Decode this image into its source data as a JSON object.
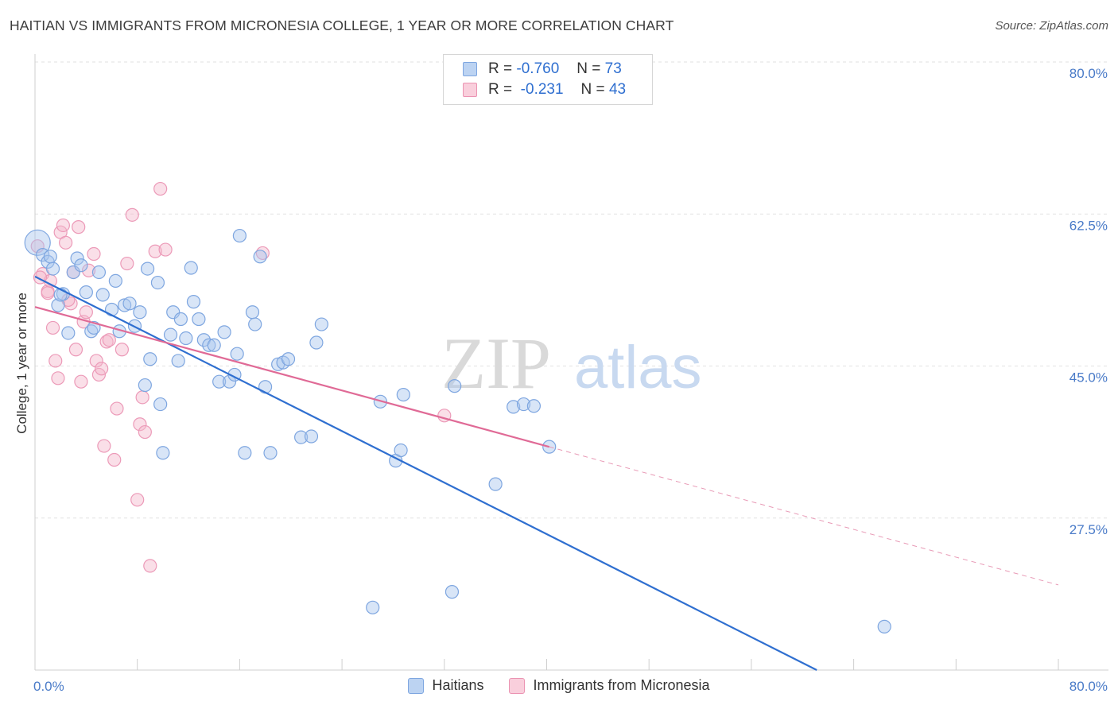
{
  "header": {
    "title": "HAITIAN VS IMMIGRANTS FROM MICRONESIA COLLEGE, 1 YEAR OR MORE CORRELATION CHART",
    "source": "Source: ZipAtlas.com"
  },
  "watermark": {
    "zip": "ZIP",
    "atlas": "atlas"
  },
  "colors": {
    "blue": "#2f6fd0",
    "blue_fill": "#a9c6ee",
    "pink": "#e06a96",
    "pink_fill": "#f5b8cc",
    "axis_text": "#4a7bc8"
  },
  "legend": {
    "rows": [
      {
        "r_label": "R =",
        "r_value": "-0.760",
        "n_label": "N =",
        "n_value": "73"
      },
      {
        "r_label": "R =",
        "r_value": "-0.231",
        "n_label": "N =",
        "n_value": "43"
      }
    ]
  },
  "chart_data": {
    "type": "scatter",
    "title": "HAITIAN VS IMMIGRANTS FROM MICRONESIA COLLEGE, 1 YEAR OR MORE CORRELATION CHART",
    "xlabel": "",
    "ylabel": "College, 1 year or more",
    "xlim": [
      0,
      80
    ],
    "ylim": [
      10,
      80
    ],
    "x_tick_labels": [
      "0.0%",
      "80.0%"
    ],
    "y_ticks": [
      27.5,
      45.0,
      62.5,
      80.0
    ],
    "y_tick_labels": [
      "27.5%",
      "45.0%",
      "62.5%",
      "80.0%"
    ],
    "grid": true,
    "legend_position": "top-center",
    "series": [
      {
        "name": "Haitians",
        "color": "#2f6fd0",
        "trend": {
          "x": [
            0,
            80
          ],
          "y": [
            55.3,
            -4.0
          ]
        },
        "points": [
          [
            0.2,
            59.2
          ],
          [
            0.6,
            57.8
          ],
          [
            1.0,
            57.0
          ],
          [
            1.4,
            56.2
          ],
          [
            1.8,
            52.0
          ],
          [
            2.2,
            53.3
          ],
          [
            2.6,
            48.8
          ],
          [
            3.0,
            55.8
          ],
          [
            3.3,
            57.4
          ],
          [
            3.6,
            56.6
          ],
          [
            4.0,
            53.5
          ],
          [
            4.4,
            49.0
          ],
          [
            4.6,
            49.4
          ],
          [
            5.0,
            55.8
          ],
          [
            5.3,
            53.2
          ],
          [
            6.0,
            51.5
          ],
          [
            6.3,
            54.8
          ],
          [
            6.6,
            49.0
          ],
          [
            7.0,
            52.0
          ],
          [
            7.4,
            52.2
          ],
          [
            7.8,
            49.6
          ],
          [
            8.2,
            51.2
          ],
          [
            8.6,
            42.8
          ],
          [
            8.8,
            56.2
          ],
          [
            9.0,
            45.8
          ],
          [
            9.6,
            54.6
          ],
          [
            9.8,
            40.6
          ],
          [
            10.0,
            35.0
          ],
          [
            10.6,
            48.6
          ],
          [
            10.8,
            51.2
          ],
          [
            11.2,
            45.6
          ],
          [
            11.4,
            50.4
          ],
          [
            11.8,
            48.2
          ],
          [
            12.2,
            56.3
          ],
          [
            12.4,
            52.4
          ],
          [
            12.8,
            50.4
          ],
          [
            13.2,
            48.0
          ],
          [
            13.6,
            47.4
          ],
          [
            14.0,
            47.4
          ],
          [
            14.4,
            43.2
          ],
          [
            14.8,
            48.9
          ],
          [
            15.2,
            43.2
          ],
          [
            15.6,
            44.0
          ],
          [
            15.8,
            46.4
          ],
          [
            16.0,
            60.0
          ],
          [
            16.4,
            35.0
          ],
          [
            17.0,
            51.2
          ],
          [
            17.2,
            49.8
          ],
          [
            17.6,
            57.6
          ],
          [
            18.0,
            42.6
          ],
          [
            18.4,
            35.0
          ],
          [
            19.0,
            45.2
          ],
          [
            19.4,
            45.4
          ],
          [
            19.8,
            45.8
          ],
          [
            20.8,
            36.8
          ],
          [
            21.6,
            36.9
          ],
          [
            22.0,
            47.7
          ],
          [
            22.4,
            49.8
          ],
          [
            26.4,
            17.2
          ],
          [
            27.0,
            40.9
          ],
          [
            28.2,
            34.1
          ],
          [
            28.6,
            35.3
          ],
          [
            28.8,
            41.7
          ],
          [
            32.6,
            19.0
          ],
          [
            32.8,
            42.7
          ],
          [
            36.0,
            31.4
          ],
          [
            37.4,
            40.3
          ],
          [
            38.2,
            40.6
          ],
          [
            39.0,
            40.4
          ],
          [
            40.2,
            35.7
          ],
          [
            66.4,
            15.0
          ],
          [
            1.2,
            57.6
          ],
          [
            2.0,
            53.2
          ]
        ],
        "radius": 8
      },
      {
        "name": "Immigrants from Micronesia",
        "color": "#e06a96",
        "trend": {
          "x": [
            0,
            40.2
          ],
          "y": [
            51.8,
            35.7
          ]
        },
        "trend_extension": {
          "x": [
            40.2,
            80
          ],
          "y": [
            35.7,
            19.8
          ]
        },
        "points": [
          [
            0.2,
            58.8
          ],
          [
            0.6,
            55.6
          ],
          [
            1.0,
            53.6
          ],
          [
            1.2,
            54.8
          ],
          [
            1.4,
            49.4
          ],
          [
            1.6,
            45.6
          ],
          [
            1.8,
            43.6
          ],
          [
            2.0,
            60.4
          ],
          [
            2.2,
            61.2
          ],
          [
            2.4,
            59.2
          ],
          [
            2.8,
            52.2
          ],
          [
            3.0,
            55.8
          ],
          [
            3.2,
            46.9
          ],
          [
            3.4,
            61.0
          ],
          [
            3.6,
            43.2
          ],
          [
            3.8,
            50.1
          ],
          [
            4.0,
            51.2
          ],
          [
            4.2,
            56.0
          ],
          [
            4.6,
            57.9
          ],
          [
            4.8,
            45.6
          ],
          [
            5.0,
            44.0
          ],
          [
            5.2,
            44.7
          ],
          [
            5.4,
            35.8
          ],
          [
            5.6,
            47.8
          ],
          [
            6.2,
            34.2
          ],
          [
            6.4,
            40.1
          ],
          [
            6.8,
            46.9
          ],
          [
            7.2,
            56.8
          ],
          [
            7.6,
            62.4
          ],
          [
            8.0,
            29.6
          ],
          [
            8.2,
            38.3
          ],
          [
            8.4,
            41.4
          ],
          [
            8.6,
            37.4
          ],
          [
            9.0,
            22.0
          ],
          [
            9.4,
            58.2
          ],
          [
            9.8,
            65.4
          ],
          [
            10.2,
            58.4
          ],
          [
            17.8,
            58.0
          ],
          [
            32.0,
            39.3
          ],
          [
            1.0,
            53.4
          ],
          [
            0.4,
            55.2
          ],
          [
            2.6,
            52.6
          ],
          [
            5.8,
            48.0
          ]
        ],
        "radius": 8
      }
    ]
  },
  "bottom_legend": {
    "items": [
      "Haitians",
      "Immigrants from Micronesia"
    ]
  }
}
